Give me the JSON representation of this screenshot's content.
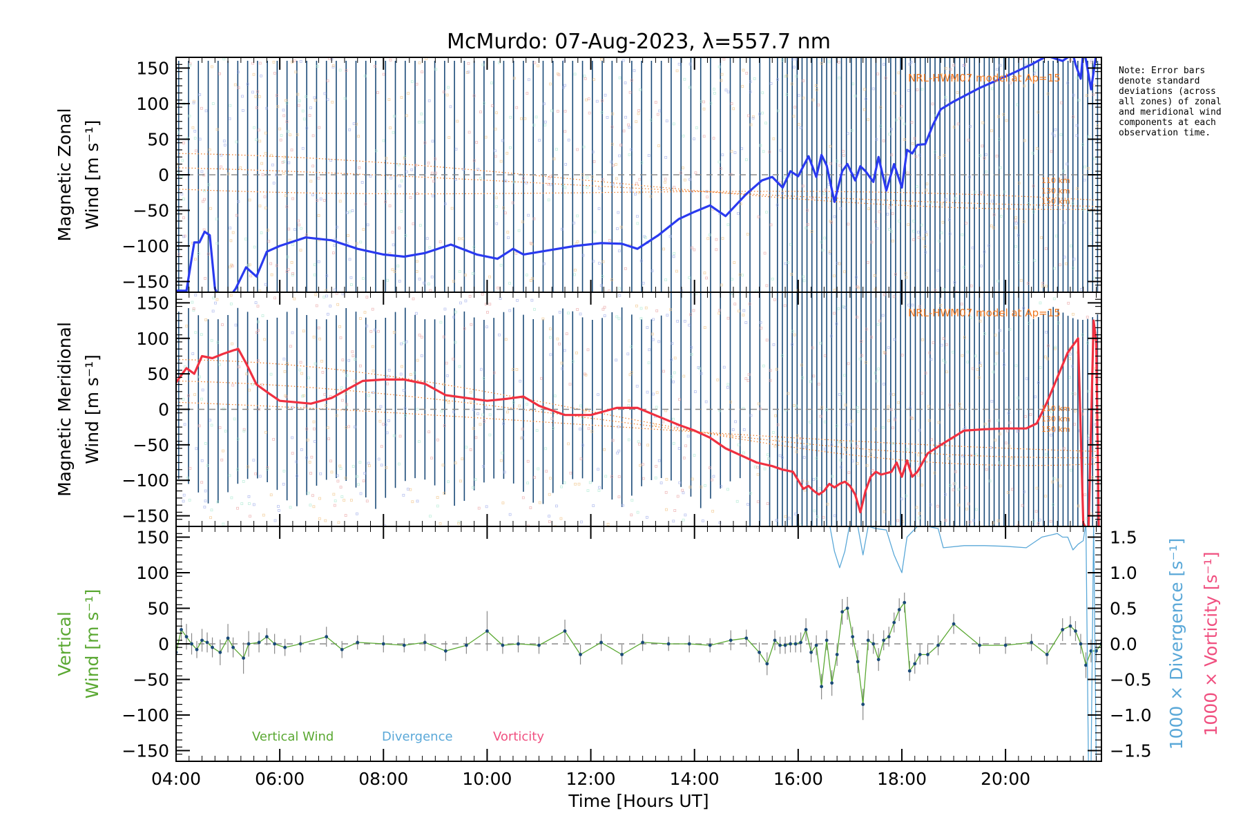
{
  "chart_data": {
    "type": "line",
    "title": "McMurdo: 07-Aug-2023, λ=557.7 nm",
    "xlabel": "Time [Hours UT]",
    "xlim": [
      4.0,
      21.85
    ],
    "x_ticks": [
      "04:00",
      "06:00",
      "08:00",
      "10:00",
      "12:00",
      "14:00",
      "16:00",
      "18:00",
      "20:00"
    ],
    "note": "Note: Error bars denote standard deviations (across all zones) of zonal and meridional wind components at each observation time.",
    "panels": [
      {
        "name": "zonal",
        "ylabel_line1": "Magnetic Zonal",
        "ylabel_line2": "Wind [m s⁻¹]",
        "ylim": [
          -165,
          165
        ],
        "y_ticks": [
          -150,
          -100,
          -50,
          0,
          50,
          100,
          150
        ],
        "model_label": "NRL-HWM07 model at Ap=15",
        "model_heights": [
          "110 km",
          "130 km",
          "150 km"
        ],
        "series": [
          {
            "name": "Magnetic Zonal Wind",
            "color": "#2a3af0",
            "x": [
              4.0,
              4.2,
              4.35,
              4.45,
              4.55,
              4.65,
              4.75,
              4.85,
              5.0,
              5.15,
              5.35,
              5.55,
              5.75,
              6.0,
              6.5,
              7.0,
              7.5,
              8.0,
              8.4,
              8.8,
              9.3,
              9.8,
              10.2,
              10.5,
              10.7,
              11.2,
              11.7,
              12.2,
              12.6,
              12.9,
              13.3,
              13.7,
              14.0,
              14.3,
              14.6,
              15.0,
              15.3,
              15.5,
              15.7,
              15.85,
              16.0,
              16.1,
              16.2,
              16.35,
              16.45,
              16.55,
              16.7,
              16.85,
              16.95,
              17.1,
              17.2,
              17.3,
              17.45,
              17.55,
              17.7,
              17.85,
              18.0,
              18.1,
              18.2,
              18.3,
              18.45,
              18.6,
              18.75,
              19.0,
              19.5,
              20.0,
              20.5,
              20.8,
              21.1,
              21.2,
              21.3,
              21.35,
              21.45,
              21.5,
              21.55,
              21.65,
              21.75
            ],
            "y": [
              -163,
              -163,
              -95,
              -95,
              -80,
              -85,
              -160,
              -175,
              -175,
              -160,
              -130,
              -143,
              -108,
              -100,
              -88,
              -92,
              -104,
              -112,
              -115,
              -110,
              -98,
              -112,
              -118,
              -104,
              -112,
              -106,
              -100,
              -96,
              -97,
              -104,
              -85,
              -62,
              -52,
              -43,
              -58,
              -27,
              -8,
              -3,
              -18,
              5,
              -2,
              12,
              26,
              -3,
              28,
              13,
              -38,
              5,
              15,
              -8,
              12,
              5,
              -10,
              25,
              -22,
              15,
              -18,
              35,
              30,
              42,
              43,
              70,
              92,
              103,
              122,
              138,
              155,
              167,
              160,
              165,
              170,
              155,
              135,
              173,
              162,
              120,
              170
            ]
          }
        ]
      },
      {
        "name": "meridional",
        "ylabel_line1": "Magnetic Meridional",
        "ylabel_line2": "Wind [m s⁻¹]",
        "ylim": [
          -165,
          165
        ],
        "y_ticks": [
          -150,
          -100,
          -50,
          0,
          50,
          100,
          150
        ],
        "model_label": "NRL-HWM07 model at Ap=15",
        "model_heights": [
          "110 km",
          "130 km",
          "150 km"
        ],
        "series": [
          {
            "name": "Magnetic Meridional Wind",
            "color": "#f03040",
            "x": [
              4.0,
              4.2,
              4.35,
              4.5,
              4.7,
              4.9,
              5.1,
              5.2,
              5.35,
              5.55,
              5.8,
              6.0,
              6.3,
              6.6,
              7.0,
              7.3,
              7.6,
              8.0,
              8.4,
              8.8,
              9.2,
              9.6,
              10.0,
              10.4,
              10.7,
              11.0,
              11.5,
              12.0,
              12.5,
              12.9,
              13.3,
              13.7,
              14.0,
              14.3,
              14.6,
              14.9,
              15.2,
              15.5,
              15.7,
              15.9,
              16.0,
              16.1,
              16.2,
              16.3,
              16.4,
              16.5,
              16.6,
              16.7,
              16.8,
              16.9,
              17.0,
              17.1,
              17.2,
              17.3,
              17.4,
              17.5,
              17.6,
              17.7,
              17.8,
              17.9,
              18.0,
              18.1,
              18.2,
              18.3,
              18.5,
              18.8,
              19.2,
              19.6,
              20.0,
              20.4,
              20.6,
              20.8,
              21.0,
              21.2,
              21.4,
              21.5,
              21.6,
              21.7,
              21.75,
              21.8
            ],
            "y": [
              38,
              58,
              50,
              75,
              72,
              78,
              83,
              85,
              65,
              35,
              22,
              12,
              10,
              8,
              16,
              28,
              40,
              42,
              42,
              36,
              20,
              16,
              12,
              15,
              18,
              5,
              -8,
              -8,
              2,
              2,
              -10,
              -22,
              -30,
              -40,
              -55,
              -65,
              -75,
              -80,
              -85,
              -88,
              -100,
              -112,
              -108,
              -115,
              -120,
              -115,
              -105,
              -110,
              -105,
              -102,
              -108,
              -120,
              -145,
              -115,
              -95,
              -88,
              -92,
              -90,
              -88,
              -75,
              -95,
              -72,
              -95,
              -88,
              -62,
              -48,
              -30,
              -28,
              -27,
              -27,
              -20,
              10,
              45,
              80,
              100,
              -160,
              -175,
              125,
              95,
              -170
            ]
          }
        ]
      },
      {
        "name": "vertical",
        "ylabel_line1": "Vertical",
        "ylabel_line2": "Wind [m s⁻¹]",
        "ylim": [
          -165,
          165
        ],
        "y_ticks": [
          -150,
          -100,
          -50,
          0,
          50,
          100,
          150
        ],
        "y2lim": [
          -1.65,
          1.65
        ],
        "y2_ticks": [
          "-1.5",
          "-1.0",
          "-0.5",
          "0.0",
          "0.5",
          "1.0",
          "1.5"
        ],
        "y2label_div": "1000 × Divergence [s⁻¹]",
        "y2label_vort": "1000 × Vorticity [s⁻¹]",
        "legend": [
          "Vertical Wind",
          "Divergence",
          "Vorticity"
        ],
        "series": [
          {
            "name": "Vertical Wind",
            "color": "#5aa832",
            "x": [
              4.0,
              4.1,
              4.2,
              4.3,
              4.4,
              4.5,
              4.6,
              4.7,
              4.85,
              5.0,
              5.1,
              5.3,
              5.4,
              5.6,
              5.75,
              5.9,
              6.1,
              6.4,
              6.9,
              7.2,
              7.5,
              8.0,
              8.4,
              8.8,
              9.2,
              9.6,
              10.0,
              10.3,
              10.6,
              11.0,
              11.5,
              11.8,
              12.2,
              12.6,
              13.0,
              13.5,
              13.9,
              14.3,
              14.7,
              15.0,
              15.25,
              15.4,
              15.55,
              15.65,
              15.75,
              15.85,
              15.95,
              16.05,
              16.15,
              16.25,
              16.35,
              16.45,
              16.55,
              16.65,
              16.75,
              16.85,
              16.95,
              17.05,
              17.15,
              17.25,
              17.35,
              17.45,
              17.55,
              17.65,
              17.75,
              17.85,
              17.95,
              18.05,
              18.15,
              18.25,
              18.35,
              18.5,
              18.7,
              19.0,
              19.5,
              20.0,
              20.5,
              20.8,
              21.1,
              21.25,
              21.35,
              21.45,
              21.55,
              21.65,
              21.75,
              21.85
            ],
            "y": [
              -12,
              20,
              10,
              0,
              -8,
              5,
              2,
              -5,
              -12,
              8,
              -5,
              -20,
              0,
              2,
              10,
              0,
              -5,
              0,
              10,
              -8,
              2,
              0,
              -2,
              2,
              -10,
              -2,
              18,
              -2,
              0,
              -2,
              18,
              -15,
              2,
              -15,
              2,
              0,
              0,
              -2,
              5,
              8,
              -12,
              -28,
              5,
              -2,
              -2,
              0,
              0,
              2,
              20,
              -12,
              -2,
              -60,
              5,
              -55,
              -15,
              45,
              50,
              10,
              -25,
              -85,
              5,
              0,
              -22,
              5,
              10,
              30,
              48,
              58,
              -38,
              -28,
              -15,
              -15,
              -2,
              28,
              -2,
              -2,
              2,
              -15,
              20,
              25,
              18,
              0,
              -30,
              -10,
              -10,
              0
            ],
            "error": [
              14,
              16,
              18,
              15,
              12,
              16,
              14,
              14,
              18,
              20,
              14,
              22,
              18,
              14,
              12,
              14,
              12,
              12,
              14,
              12,
              10,
              12,
              10,
              12,
              14,
              12,
              28,
              12,
              12,
              12,
              16,
              14,
              12,
              14,
              12,
              10,
              12,
              10,
              14,
              12,
              14,
              16,
              14,
              12,
              12,
              12,
              12,
              14,
              16,
              14,
              14,
              18,
              14,
              18,
              16,
              18,
              16,
              14,
              16,
              22,
              14,
              14,
              16,
              14,
              14,
              14,
              16,
              14,
              14,
              14,
              14,
              14,
              14,
              14,
              12,
              12,
              12,
              14,
              16,
              14,
              14,
              14,
              18,
              16,
              14,
              14
            ]
          },
          {
            "name": "Divergence (×1000)",
            "color": "#5aa8d8",
            "x": [
              16.6,
              16.7,
              16.8,
              16.9,
              17.0,
              17.15,
              17.25,
              17.35,
              17.5,
              17.7,
              17.85,
              18.0,
              18.1,
              18.3,
              18.5,
              18.7,
              18.8,
              19.2,
              19.6,
              20.0,
              20.4,
              20.7,
              21.0,
              21.1,
              21.2,
              21.3,
              21.4,
              21.5,
              21.55,
              21.6,
              21.65,
              21.7,
              21.75,
              21.8
            ],
            "y": [
              1.7,
              1.3,
              1.07,
              1.3,
              1.7,
              1.65,
              1.25,
              1.65,
              1.62,
              1.6,
              1.25,
              1.0,
              1.5,
              1.65,
              1.65,
              1.62,
              1.35,
              1.38,
              1.38,
              1.37,
              1.35,
              1.5,
              1.55,
              1.5,
              1.5,
              1.32,
              1.4,
              1.45,
              1.7,
              -1.7,
              -1.7,
              1.7,
              -1.7,
              -1.7
            ]
          }
        ]
      }
    ]
  }
}
